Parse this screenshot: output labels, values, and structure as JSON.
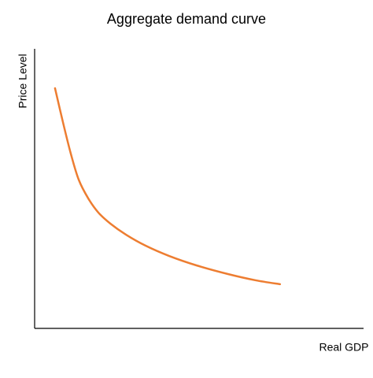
{
  "chart_data": {
    "type": "line",
    "title": "Aggregate demand curve",
    "x_label": "Real GDP",
    "y_label": "Price Level",
    "xlim": [
      0,
      100
    ],
    "ylim": [
      0,
      100
    ],
    "x": [
      6.2,
      8.6,
      11.0,
      13.4,
      16.3,
      19.4,
      23.0,
      27.8,
      33.7,
      40.9,
      49.3,
      58.9,
      67.2,
      74.6
    ],
    "series": [
      {
        "color": "#ed7d31",
        "values": [
          85.9,
          73.8,
          62.5,
          53.2,
          46.5,
          41.4,
          37.5,
          33.5,
          29.6,
          25.9,
          22.5,
          19.4,
          17.2,
          15.8
        ]
      }
    ]
  }
}
